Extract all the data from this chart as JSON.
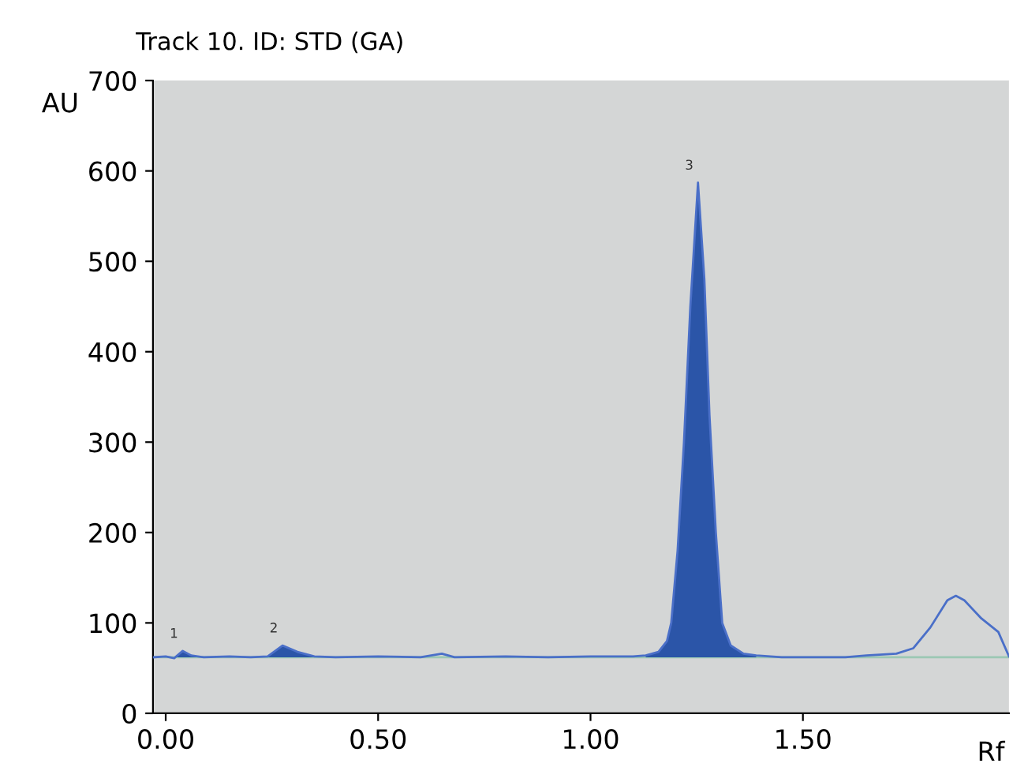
{
  "chart_data": {
    "type": "line",
    "title": "Track 10. ID: STD (GA)",
    "xlabel": "Rf",
    "ylabel": "AU",
    "xlim": [
      -0.03,
      1.985
    ],
    "ylim": [
      0,
      700
    ],
    "xticks": [
      {
        "value": 0,
        "label": "0.00"
      },
      {
        "value": 0.5,
        "label": "0.50"
      },
      {
        "value": 1,
        "label": "1.00"
      },
      {
        "value": 1.5,
        "label": "1.50"
      }
    ],
    "yticks": [
      0,
      100,
      200,
      300,
      400,
      500,
      600,
      700
    ],
    "grid": false,
    "legend": false,
    "ref_lines": [
      {
        "axis": "y",
        "value": 62,
        "color": "#9cc8b4"
      }
    ],
    "series": [
      {
        "color": "#4a6fc8",
        "x": [
          -0.03,
          0.0,
          0.02,
          0.04,
          0.06,
          0.09,
          0.15,
          0.2,
          0.24,
          0.275,
          0.31,
          0.35,
          0.4,
          0.5,
          0.6,
          0.65,
          0.68,
          0.8,
          0.9,
          1.0,
          1.1,
          1.13,
          1.16,
          1.18,
          1.19,
          1.205,
          1.22,
          1.235,
          1.253,
          1.268,
          1.28,
          1.295,
          1.31,
          1.33,
          1.36,
          1.39,
          1.45,
          1.55,
          1.6,
          1.65,
          1.72,
          1.76,
          1.8,
          1.84,
          1.86,
          1.88,
          1.92,
          1.96,
          1.985
        ],
        "values": [
          62,
          63,
          61,
          69,
          64,
          62,
          63,
          62,
          63,
          75,
          68,
          63,
          62,
          63,
          62,
          66,
          62,
          63,
          62,
          63,
          63,
          64,
          68,
          80,
          100,
          180,
          300,
          450,
          587,
          480,
          330,
          200,
          100,
          75,
          66,
          64,
          62,
          62,
          62,
          64,
          66,
          72,
          95,
          125,
          130,
          125,
          105,
          90,
          63
        ]
      },
      {
        "type": "area",
        "color": "#2b55a8",
        "x": [
          0.02,
          0.04,
          0.06,
          0.09
        ],
        "values": [
          62,
          69,
          64,
          62
        ]
      },
      {
        "type": "area",
        "color": "#2b55a8",
        "x": [
          0.24,
          0.275,
          0.31,
          0.35
        ],
        "values": [
          63,
          75,
          68,
          63
        ]
      },
      {
        "type": "area",
        "color": "#2b55a8",
        "x": [
          1.13,
          1.16,
          1.18,
          1.19,
          1.205,
          1.22,
          1.235,
          1.253,
          1.268,
          1.28,
          1.295,
          1.31,
          1.33,
          1.36,
          1.39
        ],
        "values": [
          64,
          68,
          80,
          100,
          180,
          300,
          450,
          587,
          480,
          330,
          200,
          100,
          75,
          66,
          64
        ]
      }
    ],
    "annotations": [
      "1",
      "2",
      "3"
    ]
  }
}
